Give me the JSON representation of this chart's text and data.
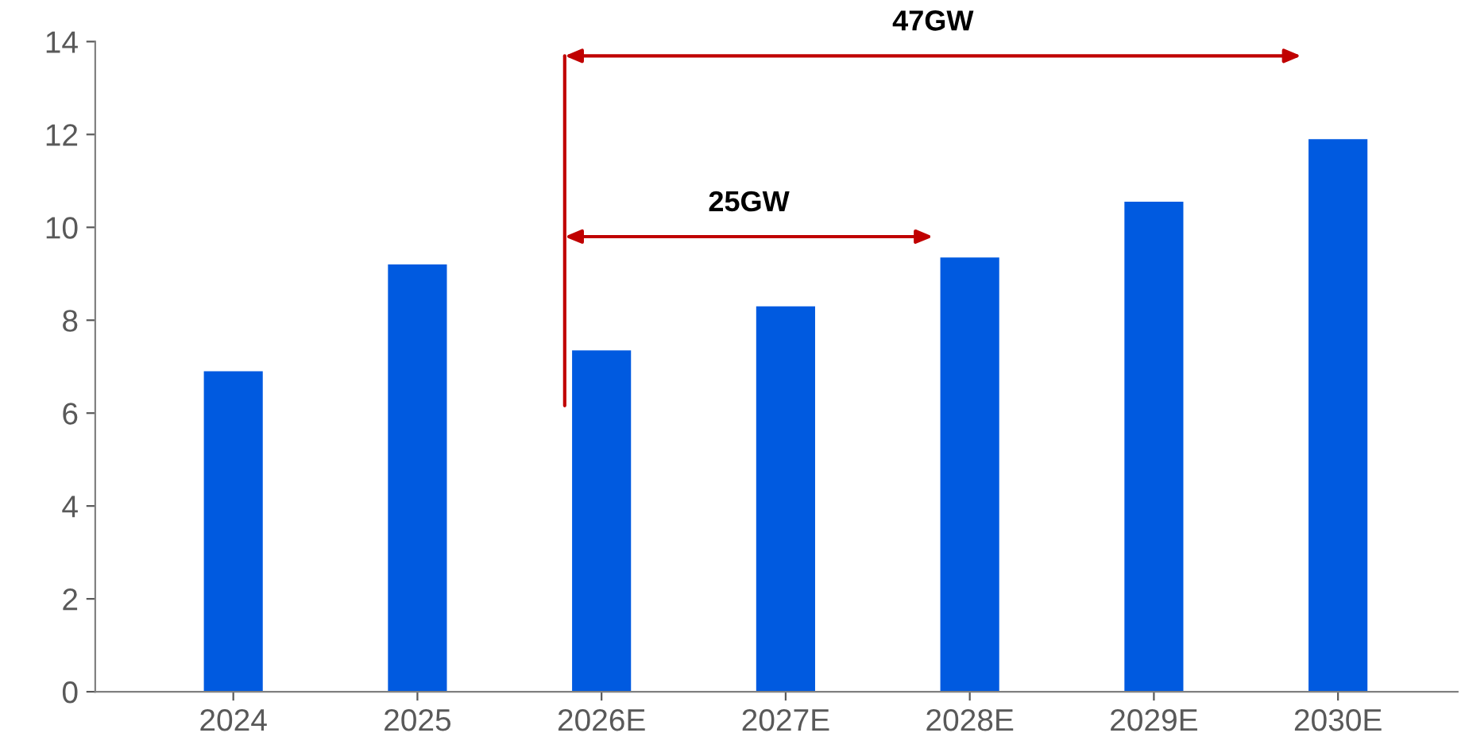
{
  "chart_data": {
    "type": "bar",
    "categories": [
      "2024",
      "2025",
      "2026E",
      "2027E",
      "2028E",
      "2029E",
      "2030E"
    ],
    "values": [
      6.9,
      9.2,
      7.35,
      8.3,
      9.35,
      10.55,
      11.9
    ],
    "color": "#005ae0",
    "ylim": [
      0,
      14
    ],
    "yticks": [
      0,
      2,
      4,
      6,
      8,
      10,
      12,
      14
    ],
    "grid": false,
    "annotations": [
      "25GW",
      "47GW"
    ]
  }
}
